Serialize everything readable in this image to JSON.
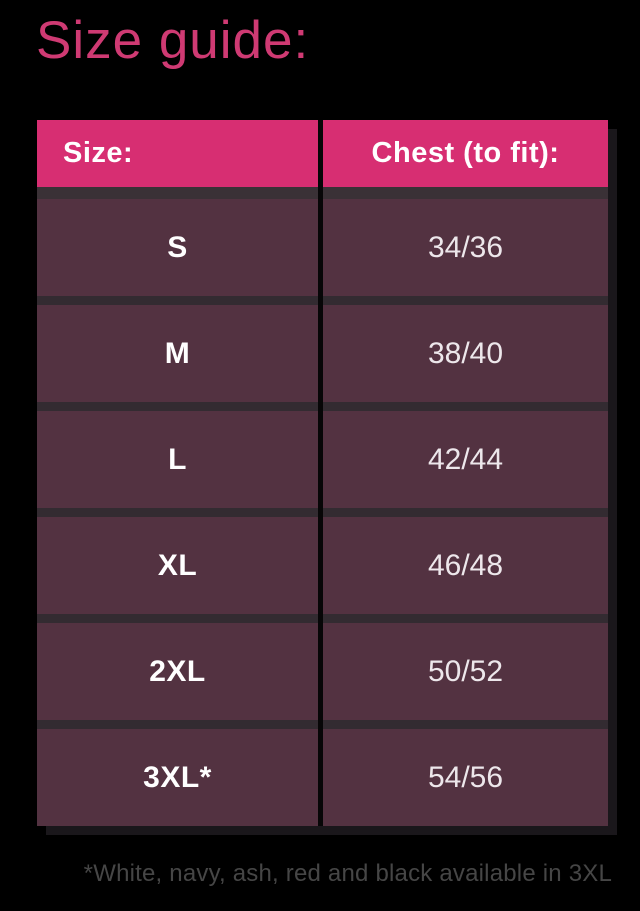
{
  "page": {
    "title": "Size guide:"
  },
  "table": {
    "headers": [
      {
        "label": "Size:"
      },
      {
        "label": "Chest (to fit):"
      }
    ],
    "rows": [
      {
        "size": "S",
        "chest": "34/36"
      },
      {
        "size": "M",
        "chest": "38/40"
      },
      {
        "size": "L",
        "chest": "42/44"
      },
      {
        "size": "XL",
        "chest": "46/48"
      },
      {
        "size": "2XL",
        "chest": "50/52"
      },
      {
        "size": "3XL*",
        "chest": "54/56"
      }
    ]
  },
  "footnote": "*White, navy, ash, red and black available in 3XL",
  "colors": {
    "accent_pink": "#d72e72",
    "title_pink": "#cf3a73",
    "row_purple": "#533241",
    "background": "#000000",
    "header_text": "#ffffff",
    "value_text": "#ede7eb",
    "footnote_gray": "#464646"
  },
  "chart_data": {
    "type": "table",
    "title": "Size guide:",
    "columns": [
      "Size:",
      "Chest (to fit):"
    ],
    "rows": [
      [
        "S",
        "34/36"
      ],
      [
        "M",
        "38/40"
      ],
      [
        "L",
        "42/44"
      ],
      [
        "XL",
        "46/48"
      ],
      [
        "2XL",
        "50/52"
      ],
      [
        "3XL*",
        "54/56"
      ]
    ],
    "footnote": "*White, navy, ash, red and black available in 3XL",
    "layout": {
      "header_color": "#d72e72",
      "body_color": "#533241",
      "grid": "on"
    }
  }
}
